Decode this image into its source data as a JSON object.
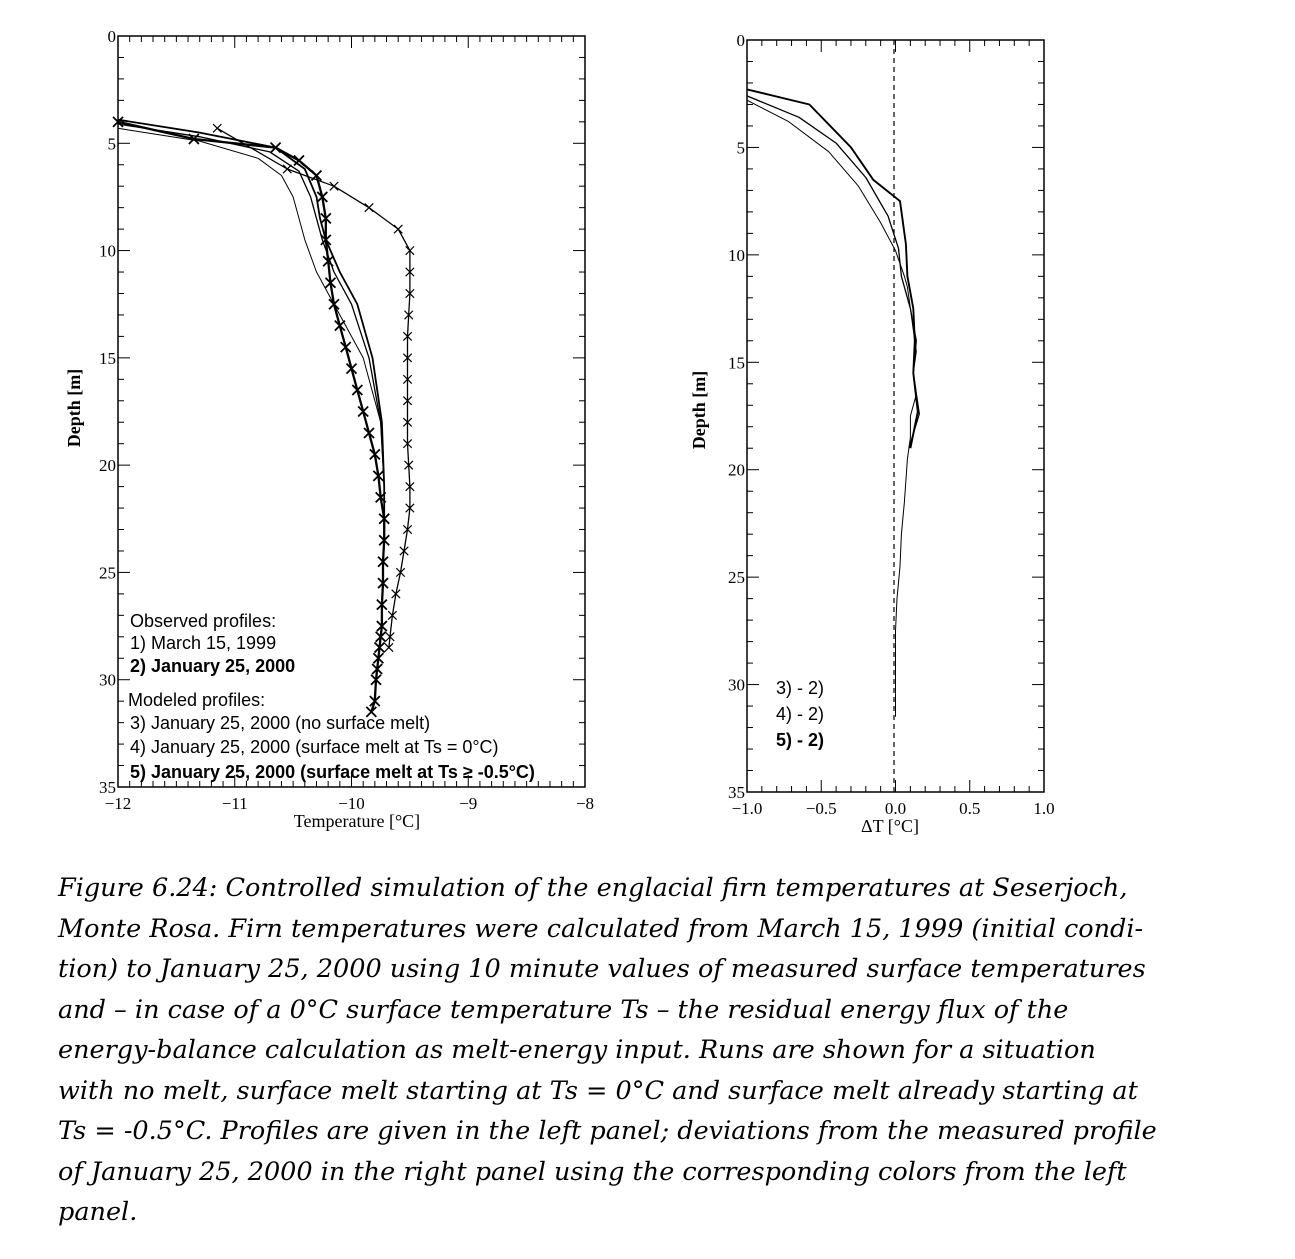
{
  "chart_data": [
    {
      "type": "line",
      "panel": "left",
      "xlabel": "Temperature [°C]",
      "ylabel": "Depth [m]",
      "xlim": [
        -12,
        -8
      ],
      "ylim": [
        35,
        0
      ],
      "xticks": [
        "−12",
        "−11",
        "−10",
        "−9",
        "−8"
      ],
      "yticks": [
        "0",
        "5",
        "10",
        "15",
        "20",
        "25",
        "30",
        "35"
      ],
      "grid": false,
      "legend_position": "bottom-left",
      "legend": {
        "observed_header": "Observed profiles:",
        "modeled_header": "Modeled profiles:",
        "entries": [
          "1) March 15, 1999",
          "2) January 25, 2000",
          "3) January 25, 2000 (no surface melt)",
          "4) January 25, 2000 (surface melt at Ts = 0°C)",
          "5) January 25, 2000 (surface melt at Ts ≥ -0.5°C)"
        ]
      },
      "series": [
        {
          "name": "1) March 15, 1999",
          "marker": "x",
          "width": 1.3,
          "x": [
            -11.15,
            -10.55,
            -10.15,
            -9.85,
            -9.6,
            -9.5,
            -9.5,
            -9.5,
            -9.51,
            -9.52,
            -9.52,
            -9.52,
            -9.52,
            -9.52,
            -9.52,
            -9.51,
            -9.5,
            -9.5,
            -9.52,
            -9.55,
            -9.58,
            -9.62,
            -9.65,
            -9.67,
            -9.68
          ],
          "y": [
            4.3,
            6.2,
            7.0,
            8.0,
            9.0,
            10.0,
            11.0,
            12.0,
            13.0,
            14.0,
            15.0,
            16.0,
            17.0,
            18.0,
            19.0,
            20.0,
            21.0,
            22.0,
            23.0,
            24.0,
            25.0,
            26.0,
            27.0,
            28.0,
            28.5
          ]
        },
        {
          "name": "2) January 25, 2000",
          "marker": "x",
          "width": 2.3,
          "x": [
            -12.0,
            -11.35,
            -10.65,
            -10.45,
            -10.3,
            -10.25,
            -10.22,
            -10.22,
            -10.2,
            -10.18,
            -10.15,
            -10.1,
            -10.05,
            -10.0,
            -9.95,
            -9.9,
            -9.85,
            -9.8,
            -9.77,
            -9.75,
            -9.72,
            -9.72,
            -9.73,
            -9.73,
            -9.74,
            -9.74,
            -9.75,
            -9.76,
            -9.77,
            -9.78,
            -9.79,
            -9.8,
            -9.83
          ],
          "y": [
            4.0,
            4.8,
            5.2,
            5.8,
            6.5,
            7.5,
            8.5,
            9.5,
            10.5,
            11.5,
            12.5,
            13.5,
            14.5,
            15.5,
            16.5,
            17.5,
            18.5,
            19.5,
            20.5,
            21.5,
            22.5,
            23.5,
            24.5,
            25.5,
            26.5,
            27.5,
            28.0,
            28.5,
            29.0,
            29.5,
            30.0,
            31.0,
            31.5
          ]
        },
        {
          "name": "3) January 25, 2000 (no surface melt)",
          "marker": "none",
          "width": 1.0,
          "x": [
            -12.0,
            -11.3,
            -10.8,
            -10.6,
            -10.5,
            -10.45,
            -10.4,
            -10.3,
            -10.15,
            -9.9,
            -9.75,
            -9.72,
            -9.72
          ],
          "y": [
            4.3,
            4.9,
            5.7,
            6.5,
            7.5,
            8.5,
            9.5,
            11.0,
            12.5,
            15.0,
            18.0,
            21.0,
            23.0
          ]
        },
        {
          "name": "4) January 25, 2000 (surface melt at Ts = 0°C)",
          "marker": "none",
          "width": 1.3,
          "x": [
            -12.0,
            -11.3,
            -10.7,
            -10.45,
            -10.35,
            -10.3,
            -10.25,
            -10.15,
            -10.0,
            -9.85,
            -9.75,
            -9.72,
            -9.72
          ],
          "y": [
            4.1,
            4.7,
            5.4,
            6.3,
            7.5,
            8.5,
            9.5,
            11.0,
            12.5,
            15.0,
            18.0,
            21.0,
            23.0
          ]
        },
        {
          "name": "5) January 25, 2000 (surface melt at Ts ≥ -0.5°C)",
          "marker": "none",
          "width": 1.8,
          "x": [
            -12.0,
            -11.3,
            -10.65,
            -10.4,
            -10.3,
            -10.27,
            -10.22,
            -10.1,
            -9.95,
            -9.82,
            -9.74,
            -9.72,
            -9.72
          ],
          "y": [
            3.9,
            4.5,
            5.2,
            6.2,
            7.5,
            8.5,
            9.5,
            11.0,
            12.5,
            15.0,
            18.0,
            21.0,
            23.0
          ]
        }
      ]
    },
    {
      "type": "line",
      "panel": "right",
      "xlabel": "ΔT [°C]",
      "ylabel": "Depth [m]",
      "xlim": [
        -1.0,
        1.0
      ],
      "ylim": [
        35,
        0
      ],
      "xticks": [
        "−1.0",
        "−0.5",
        "0.0",
        "0.5",
        "1.0"
      ],
      "yticks": [
        "0",
        "5",
        "10",
        "15",
        "20",
        "25",
        "30",
        "35"
      ],
      "grid": false,
      "zero_line": "dashed",
      "legend_position": "bottom-left",
      "legend": [
        "3) - 2)",
        "4) - 2)",
        "5) - 2)"
      ],
      "series": [
        {
          "name": "3) - 2)",
          "width": 1.0,
          "x": [
            -1.0,
            -0.72,
            -0.45,
            -0.25,
            -0.1,
            0.0,
            0.06,
            0.08,
            0.1,
            0.12,
            0.14,
            0.12,
            0.14,
            0.1,
            0.1,
            0.08,
            0.06,
            0.04,
            0.03,
            0.01,
            0.0,
            0.0,
            0.0
          ],
          "y": [
            2.8,
            3.8,
            5.2,
            6.8,
            8.5,
            9.8,
            11.0,
            11.5,
            12.5,
            13.5,
            14.5,
            15.5,
            16.5,
            17.5,
            18.5,
            19.5,
            21.5,
            23.0,
            24.5,
            26.0,
            27.5,
            29.0,
            31.5
          ]
        },
        {
          "name": "4) - 2)",
          "width": 1.3,
          "x": [
            -1.0,
            -0.65,
            -0.4,
            -0.2,
            -0.05,
            0.02,
            0.04,
            0.1,
            0.14,
            0.12,
            0.16,
            0.09
          ],
          "y": [
            2.6,
            3.6,
            4.8,
            6.4,
            8.2,
            9.7,
            11.0,
            12.5,
            14.0,
            15.5,
            17.4,
            19.0
          ]
        },
        {
          "name": "5) - 2)",
          "width": 1.9,
          "x": [
            -1.0,
            -0.58,
            -0.3,
            -0.15,
            0.03,
            0.07,
            0.08,
            0.12,
            0.13,
            0.12,
            0.15,
            0.1
          ],
          "y": [
            2.3,
            3.0,
            5.0,
            6.5,
            7.5,
            9.5,
            11.0,
            12.5,
            14.0,
            15.5,
            17.3,
            19.0
          ]
        }
      ]
    }
  ],
  "caption": {
    "lines": [
      "Figure 6.24: Controlled simulation of the englacial firn temperatures at Seserjoch,",
      "Monte Rosa. Firn temperatures were calculated from March 15, 1999 (initial condi-",
      "tion) to January 25, 2000 using 10 minute values of measured surface temperatures",
      "and – in case of a 0°C surface temperature Ts – the residual energy flux of the",
      "energy-balance calculation as melt-energy input. Runs are shown for a situation",
      "with no melt, surface melt starting at Ts = 0°C and surface melt already starting at",
      "Ts = -0.5°C. Profiles are given in the left panel; deviations from the measured profile",
      "of January 25, 2000 in the right panel using the corresponding colors from the left",
      "panel."
    ]
  }
}
